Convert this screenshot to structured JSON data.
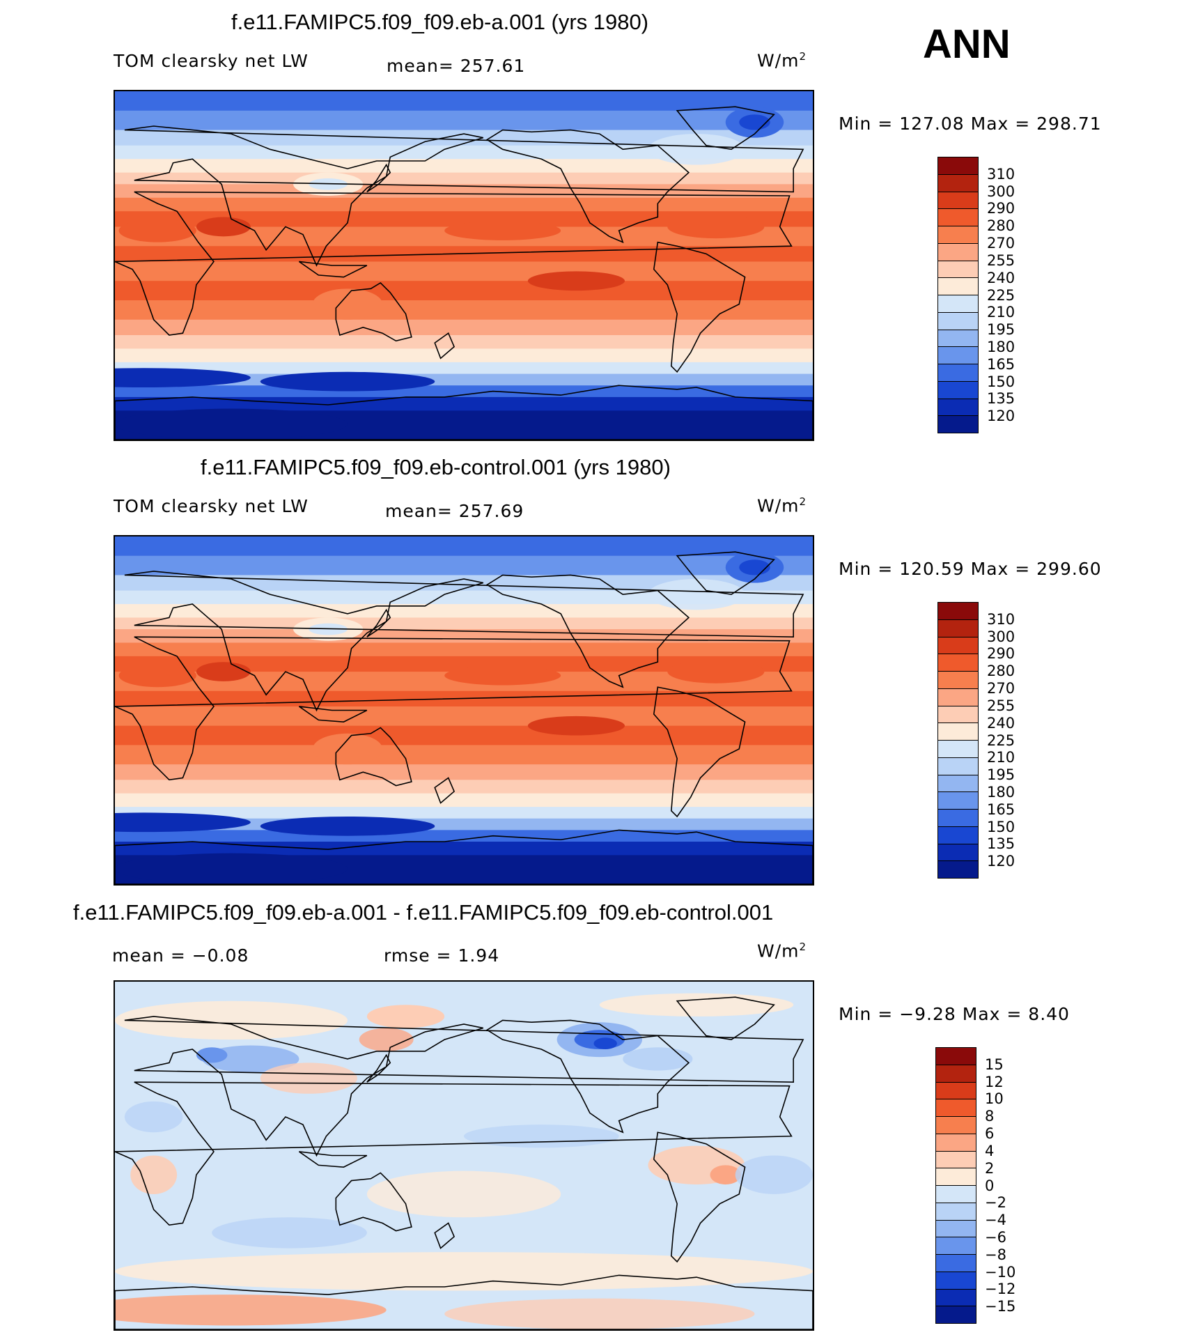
{
  "season_label": "ANN",
  "panels": [
    {
      "title": "f.e11.FAMIPC5.f09_f09.eb-a.001 (yrs 1980)",
      "variable": "TOM clearsky net LW",
      "stat_text": "mean= 257.61",
      "units": "W/m",
      "units_sup": "2",
      "minmax_text": "Min  =  127.08  Max  =  298.71",
      "colorbar": {
        "labels": [
          "310",
          "300",
          "290",
          "280",
          "270",
          "255",
          "240",
          "225",
          "210",
          "195",
          "180",
          "165",
          "150",
          "135",
          "120"
        ],
        "colors": [
          "#8a0a0a",
          "#b3230f",
          "#d93c1a",
          "#ef5a2c",
          "#f77f4e",
          "#fba684",
          "#fdcdb5",
          "#fdebd9",
          "#d4e6f8",
          "#b9d3f6",
          "#93b6f1",
          "#6995ec",
          "#3a6be2",
          "#1947d2",
          "#0b2cb4",
          "#051a8c"
        ]
      },
      "map_kind": "absolute"
    },
    {
      "title": "f.e11.FAMIPC5.f09_f09.eb-control.001 (yrs 1980)",
      "variable": "TOM clearsky net LW",
      "stat_text": "mean= 257.69",
      "units": "W/m",
      "units_sup": "2",
      "minmax_text": "Min  =  120.59  Max  =  299.60",
      "colorbar": {
        "labels": [
          "310",
          "300",
          "290",
          "280",
          "270",
          "255",
          "240",
          "225",
          "210",
          "195",
          "180",
          "165",
          "150",
          "135",
          "120"
        ],
        "colors": [
          "#8a0a0a",
          "#b3230f",
          "#d93c1a",
          "#ef5a2c",
          "#f77f4e",
          "#fba684",
          "#fdcdb5",
          "#fdebd9",
          "#d4e6f8",
          "#b9d3f6",
          "#93b6f1",
          "#6995ec",
          "#3a6be2",
          "#1947d2",
          "#0b2cb4",
          "#051a8c"
        ]
      },
      "map_kind": "absolute"
    },
    {
      "title": "f.e11.FAMIPC5.f09_f09.eb-a.001 - f.e11.FAMIPC5.f09_f09.eb-control.001",
      "variable": "",
      "stat_text": "mean =   −0.08",
      "stat_text2": "rmse =     1.94",
      "units": "W/m",
      "units_sup": "2",
      "minmax_text": "Min  =    −9.28  Max  =      8.40",
      "colorbar": {
        "labels": [
          "15",
          "12",
          "10",
          "8",
          "6",
          "4",
          "2",
          "0",
          "−2",
          "−4",
          "−6",
          "−8",
          "−10",
          "−12",
          "−15"
        ],
        "colors": [
          "#8a0a0a",
          "#b3230f",
          "#d93c1a",
          "#ef5a2c",
          "#f77f4e",
          "#fba684",
          "#fdcdb5",
          "#fdebd9",
          "#d4e6f8",
          "#b9d3f6",
          "#93b6f1",
          "#6995ec",
          "#3a6be2",
          "#1947d2",
          "#0b2cb4",
          "#051a8c"
        ]
      },
      "map_kind": "difference"
    }
  ]
}
